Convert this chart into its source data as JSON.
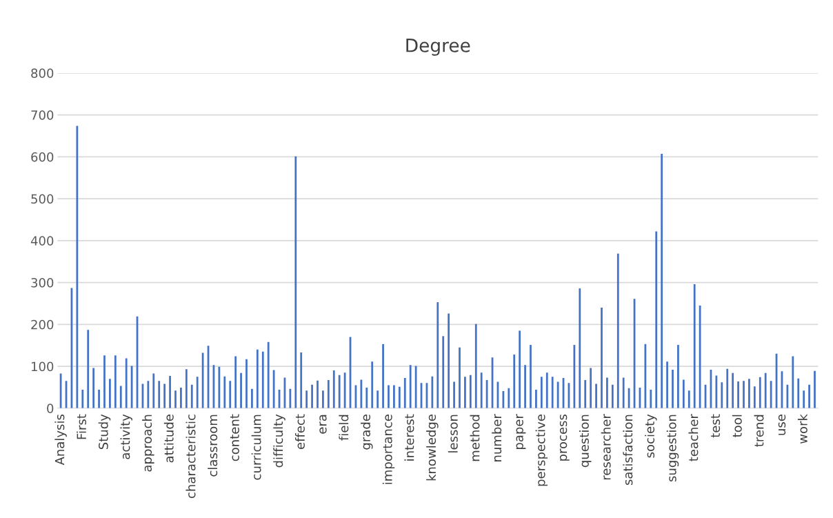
{
  "chart_data": {
    "type": "bar",
    "title": "Degree",
    "color": "#4472c4",
    "categories": [
      "Analysis",
      null,
      null,
      null,
      "First",
      null,
      null,
      null,
      "Study",
      null,
      null,
      null,
      "activity",
      null,
      null,
      null,
      "approach",
      null,
      null,
      null,
      "attitude",
      null,
      null,
      null,
      "characteristic",
      null,
      null,
      null,
      "classroom",
      null,
      null,
      null,
      "content",
      null,
      null,
      null,
      "curriculum",
      null,
      null,
      null,
      "difficulty",
      null,
      null,
      null,
      "effect",
      null,
      null,
      null,
      "era",
      null,
      null,
      null,
      "field",
      null,
      null,
      null,
      "grade",
      null,
      null,
      null,
      "importance",
      null,
      null,
      null,
      "interest",
      null,
      null,
      null,
      "knowledge",
      null,
      null,
      null,
      "lesson",
      null,
      null,
      null,
      "method",
      null,
      null,
      null,
      "number",
      null,
      null,
      null,
      "paper",
      null,
      null,
      null,
      "perspective",
      null,
      null,
      null,
      "process",
      null,
      null,
      null,
      "question",
      null,
      null,
      null,
      "researcher",
      null,
      null,
      null,
      "satisfaction",
      null,
      null,
      null,
      "society",
      null,
      null,
      null,
      "suggestion",
      null,
      null,
      null,
      "teacher",
      null,
      null,
      null,
      "test",
      null,
      null,
      null,
      "tool",
      null,
      null,
      null,
      "trend",
      null,
      null,
      null,
      "use",
      null,
      null,
      null,
      "work",
      null,
      null
    ],
    "values": [
      83,
      65,
      287,
      674,
      44,
      187,
      96,
      44,
      126,
      70,
      126,
      53,
      119,
      101,
      219,
      58,
      65,
      83,
      65,
      58,
      77,
      42,
      49,
      93,
      56,
      75,
      132,
      149,
      103,
      99,
      76,
      65,
      124,
      84,
      117,
      46,
      140,
      135,
      158,
      91,
      44,
      73,
      46,
      601,
      133,
      42,
      56,
      66,
      42,
      67,
      90,
      79,
      85,
      170,
      55,
      68,
      49,
      111,
      42,
      153,
      55,
      55,
      51,
      72,
      103,
      101,
      60,
      60,
      76,
      253,
      172,
      226,
      63,
      145,
      75,
      79,
      201,
      85,
      67,
      121,
      63,
      41,
      48,
      128,
      185,
      103,
      151,
      44,
      75,
      85,
      75,
      63,
      72,
      60,
      151,
      286,
      67,
      96,
      58,
      240,
      73,
      56,
      369,
      73,
      48,
      261,
      49,
      153,
      44,
      422,
      607,
      111,
      92,
      151,
      68,
      42,
      296,
      245,
      56,
      92,
      78,
      62,
      94,
      84,
      64,
      65,
      70,
      52,
      74,
      84,
      65,
      130,
      88,
      56,
      124,
      71,
      42,
      56,
      89
    ],
    "ylim": [
      0,
      800
    ],
    "yticks": [
      0,
      100,
      200,
      300,
      400,
      500,
      600,
      700,
      800
    ],
    "grid": "y"
  }
}
